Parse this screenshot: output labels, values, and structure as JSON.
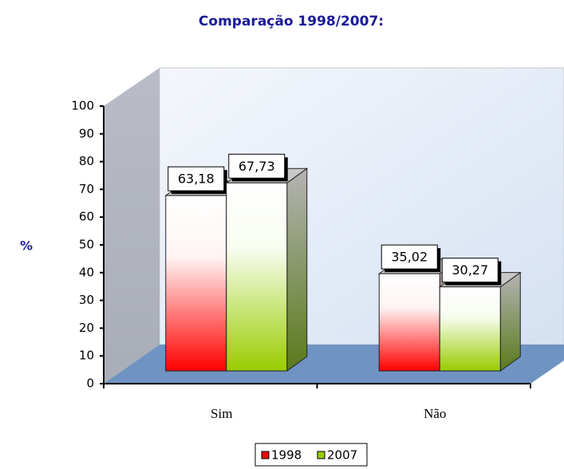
{
  "chart_data": {
    "type": "bar3d",
    "title": "Comparação 1998/2007:",
    "ylabel": "%",
    "categories": [
      "Sim",
      "Não"
    ],
    "series": [
      {
        "name": "1998",
        "color": "#ff0000",
        "values": [
          63.18,
          35.02
        ],
        "value_labels": [
          "63,18",
          "35,02"
        ]
      },
      {
        "name": "2007",
        "color": "#99cc00",
        "values": [
          67.73,
          30.27
        ],
        "value_labels": [
          "67,73",
          "30,27"
        ]
      }
    ],
    "ylim": [
      0,
      100
    ],
    "yticks": [
      0,
      10,
      20,
      30,
      40,
      50,
      60,
      70,
      80,
      90,
      100
    ],
    "legend": "bottom"
  }
}
